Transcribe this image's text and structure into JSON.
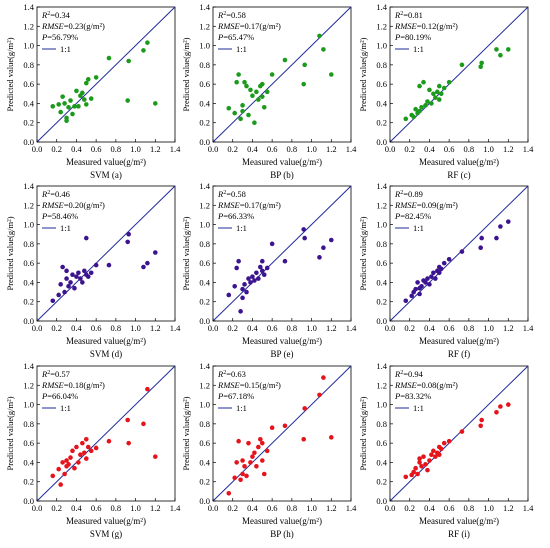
{
  "shared": {
    "x_ticks": [
      "0.0",
      "0.2",
      "0.4",
      "0.6",
      "0.8",
      "1.0",
      "1.2",
      "1.4"
    ],
    "y_ticks": [
      "0.0",
      "0.2",
      "0.4",
      "0.6",
      "0.8",
      "1.0",
      "1.2",
      "1.4"
    ],
    "xlabel": "Measured value(g/m²)",
    "ylabel": "Predicted value(g/m²)",
    "legend_label": "1:1",
    "line_color": "#1f2a9a"
  },
  "chart_data": [
    {
      "type": "scatter",
      "caption": "SVM (a)",
      "color": "#1b9a1b",
      "xlim": [
        0,
        1.4
      ],
      "ylim": [
        0,
        1.4
      ],
      "r2": "0.34",
      "rmse": "0.23(g/m²)",
      "p": "56.79%",
      "x": [
        0.16,
        0.22,
        0.24,
        0.26,
        0.28,
        0.3,
        0.3,
        0.32,
        0.34,
        0.36,
        0.38,
        0.4,
        0.42,
        0.44,
        0.46,
        0.48,
        0.5,
        0.5,
        0.52,
        0.55,
        0.6,
        0.73,
        0.92,
        0.93,
        1.08,
        1.12,
        1.2
      ],
      "y": [
        0.37,
        0.39,
        0.31,
        0.47,
        0.4,
        0.25,
        0.22,
        0.36,
        0.43,
        0.29,
        0.37,
        0.53,
        0.37,
        0.48,
        0.51,
        0.44,
        0.61,
        0.39,
        0.65,
        0.45,
        0.67,
        0.87,
        0.43,
        0.84,
        0.95,
        1.03,
        0.4
      ]
    },
    {
      "type": "scatter",
      "caption": "BP (b)",
      "color": "#1b9a1b",
      "xlim": [
        0,
        1.4
      ],
      "ylim": [
        0,
        1.4
      ],
      "r2": "0.58",
      "rmse": "0.17(g/m²)",
      "p": "65.47%",
      "x": [
        0.16,
        0.22,
        0.24,
        0.26,
        0.28,
        0.3,
        0.3,
        0.32,
        0.34,
        0.36,
        0.38,
        0.4,
        0.42,
        0.44,
        0.46,
        0.48,
        0.5,
        0.5,
        0.52,
        0.55,
        0.6,
        0.73,
        0.92,
        0.93,
        1.08,
        1.12,
        1.2
      ],
      "y": [
        0.35,
        0.3,
        0.62,
        0.7,
        0.24,
        0.38,
        0.32,
        0.62,
        0.58,
        0.28,
        0.54,
        0.48,
        0.2,
        0.52,
        0.44,
        0.58,
        0.47,
        0.6,
        0.36,
        0.52,
        0.7,
        0.85,
        0.6,
        0.8,
        1.1,
        0.96,
        0.7
      ]
    },
    {
      "type": "scatter",
      "caption": "RF (c)",
      "color": "#1b9a1b",
      "xlim": [
        0,
        1.4
      ],
      "ylim": [
        0,
        1.4
      ],
      "r2": "0.81",
      "rmse": "0.12(g/m²)",
      "p": "80.19%",
      "x": [
        0.16,
        0.22,
        0.24,
        0.26,
        0.28,
        0.3,
        0.3,
        0.32,
        0.34,
        0.36,
        0.38,
        0.4,
        0.42,
        0.44,
        0.46,
        0.48,
        0.5,
        0.5,
        0.52,
        0.55,
        0.6,
        0.73,
        0.92,
        0.93,
        1.08,
        1.12,
        1.2
      ],
      "y": [
        0.24,
        0.28,
        0.26,
        0.34,
        0.3,
        0.58,
        0.32,
        0.36,
        0.62,
        0.38,
        0.42,
        0.54,
        0.4,
        0.5,
        0.46,
        0.52,
        0.58,
        0.44,
        0.5,
        0.56,
        0.62,
        0.8,
        0.78,
        0.82,
        0.96,
        0.9,
        0.96
      ]
    },
    {
      "type": "scatter",
      "caption": "SVM (d)",
      "color": "#3d148f",
      "xlim": [
        0,
        1.4
      ],
      "ylim": [
        0,
        1.4
      ],
      "r2": "0.46",
      "rmse": "0.20(g/m²)",
      "p": "58.46%",
      "x": [
        0.16,
        0.22,
        0.24,
        0.26,
        0.28,
        0.3,
        0.3,
        0.32,
        0.34,
        0.36,
        0.38,
        0.4,
        0.42,
        0.44,
        0.46,
        0.48,
        0.5,
        0.5,
        0.52,
        0.55,
        0.6,
        0.73,
        0.92,
        0.93,
        1.08,
        1.12,
        1.2
      ],
      "y": [
        0.21,
        0.27,
        0.38,
        0.56,
        0.3,
        0.44,
        0.52,
        0.36,
        0.4,
        0.48,
        0.34,
        0.46,
        0.5,
        0.44,
        0.4,
        0.52,
        0.86,
        0.48,
        0.46,
        0.5,
        0.58,
        0.58,
        0.82,
        0.9,
        0.56,
        0.6,
        0.71
      ]
    },
    {
      "type": "scatter",
      "caption": "BP (e)",
      "color": "#3d148f",
      "xlim": [
        0,
        1.4
      ],
      "ylim": [
        0,
        1.4
      ],
      "r2": "0.58",
      "rmse": "0.17(g/m²)",
      "p": "66.33%",
      "x": [
        0.16,
        0.22,
        0.24,
        0.26,
        0.28,
        0.3,
        0.3,
        0.32,
        0.34,
        0.36,
        0.38,
        0.4,
        0.42,
        0.44,
        0.46,
        0.48,
        0.5,
        0.5,
        0.52,
        0.55,
        0.6,
        0.73,
        0.92,
        0.93,
        1.08,
        1.12,
        1.2
      ],
      "y": [
        0.27,
        0.36,
        0.55,
        0.62,
        0.1,
        0.24,
        0.33,
        0.38,
        0.3,
        0.44,
        0.4,
        0.46,
        0.42,
        0.5,
        0.44,
        0.56,
        0.52,
        0.62,
        0.48,
        0.55,
        0.8,
        0.62,
        0.95,
        0.86,
        0.66,
        0.76,
        0.84
      ]
    },
    {
      "type": "scatter",
      "caption": "RF (f)",
      "color": "#3d148f",
      "xlim": [
        0,
        1.4
      ],
      "ylim": [
        0,
        1.4
      ],
      "r2": "0.89",
      "rmse": "0.09(g/m²)",
      "p": "82.45%",
      "x": [
        0.16,
        0.22,
        0.24,
        0.26,
        0.28,
        0.3,
        0.3,
        0.32,
        0.34,
        0.36,
        0.38,
        0.4,
        0.42,
        0.44,
        0.46,
        0.48,
        0.5,
        0.5,
        0.52,
        0.55,
        0.6,
        0.73,
        0.92,
        0.93,
        1.08,
        1.12,
        1.2
      ],
      "y": [
        0.21,
        0.26,
        0.3,
        0.33,
        0.4,
        0.34,
        0.28,
        0.36,
        0.42,
        0.4,
        0.44,
        0.38,
        0.46,
        0.5,
        0.44,
        0.52,
        0.5,
        0.56,
        0.54,
        0.6,
        0.64,
        0.72,
        0.76,
        0.86,
        0.86,
        0.98,
        1.03
      ]
    },
    {
      "type": "scatter",
      "caption": "SVM (g)",
      "color": "#e5141c",
      "xlim": [
        0,
        1.4
      ],
      "ylim": [
        0,
        1.4
      ],
      "r2": "0.57",
      "rmse": "0.18(g/m²)",
      "p": "66.04%",
      "x": [
        0.16,
        0.22,
        0.24,
        0.26,
        0.28,
        0.3,
        0.3,
        0.32,
        0.34,
        0.36,
        0.38,
        0.4,
        0.42,
        0.44,
        0.46,
        0.48,
        0.5,
        0.5,
        0.52,
        0.55,
        0.6,
        0.73,
        0.92,
        0.93,
        1.08,
        1.12,
        1.2
      ],
      "y": [
        0.26,
        0.33,
        0.17,
        0.4,
        0.28,
        0.36,
        0.42,
        0.38,
        0.45,
        0.52,
        0.34,
        0.56,
        0.4,
        0.48,
        0.6,
        0.5,
        0.44,
        0.64,
        0.56,
        0.52,
        0.55,
        0.62,
        0.84,
        0.6,
        0.8,
        1.16,
        0.46
      ]
    },
    {
      "type": "scatter",
      "caption": "BP (h)",
      "color": "#e5141c",
      "xlim": [
        0,
        1.4
      ],
      "ylim": [
        0,
        1.4
      ],
      "r2": "0.63",
      "rmse": "0.15(g/m²)",
      "p": "67.18%",
      "x": [
        0.16,
        0.22,
        0.24,
        0.26,
        0.28,
        0.3,
        0.3,
        0.32,
        0.34,
        0.36,
        0.38,
        0.4,
        0.42,
        0.44,
        0.46,
        0.48,
        0.5,
        0.5,
        0.52,
        0.55,
        0.6,
        0.73,
        0.92,
        0.93,
        1.08,
        1.12,
        1.2
      ],
      "y": [
        0.08,
        0.24,
        0.4,
        0.62,
        0.22,
        0.42,
        0.28,
        0.36,
        0.26,
        0.6,
        0.4,
        0.46,
        0.5,
        0.36,
        0.56,
        0.64,
        0.42,
        0.6,
        0.28,
        0.52,
        0.76,
        0.78,
        0.64,
        0.96,
        1.1,
        1.28,
        0.66
      ]
    },
    {
      "type": "scatter",
      "caption": "RF (i)",
      "color": "#e5141c",
      "xlim": [
        0,
        1.4
      ],
      "ylim": [
        0,
        1.4
      ],
      "r2": "0.94",
      "rmse": "0.08(g/m²)",
      "p": "83.32%",
      "x": [
        0.16,
        0.22,
        0.24,
        0.26,
        0.28,
        0.3,
        0.3,
        0.32,
        0.34,
        0.36,
        0.38,
        0.4,
        0.42,
        0.44,
        0.46,
        0.48,
        0.5,
        0.5,
        0.52,
        0.55,
        0.6,
        0.73,
        0.92,
        0.93,
        1.08,
        1.12,
        1.2
      ],
      "y": [
        0.25,
        0.27,
        0.3,
        0.34,
        0.28,
        0.4,
        0.44,
        0.36,
        0.46,
        0.38,
        0.32,
        0.42,
        0.48,
        0.52,
        0.46,
        0.5,
        0.56,
        0.48,
        0.54,
        0.6,
        0.62,
        0.72,
        0.78,
        0.84,
        0.92,
        0.98,
        1.0
      ]
    }
  ]
}
